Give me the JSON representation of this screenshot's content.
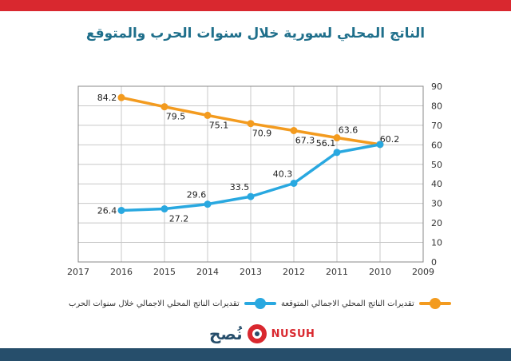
{
  "title": "الناتج المحلي لسورية خلال سنوات الحرب والمتوقع",
  "legend": {
    "actual": "تقديرات الناتج المحلي الاجمالي خلال سنوات الحرب",
    "expected": "تقديرات الناتج المحلي الاجمالي المتوقعة"
  },
  "logo": {
    "arabic": "نُصح",
    "english": "NUSUH"
  },
  "colors": {
    "actual": "#29a8e0",
    "expected": "#f39b1f",
    "accent": "#d9282f",
    "navy": "#264e6b"
  },
  "chart_data": {
    "type": "line",
    "x_ticks": [
      "2017",
      "2016",
      "2015",
      "2014",
      "2013",
      "2012",
      "2011",
      "2010",
      "2009"
    ],
    "y_ticks": [
      "0",
      "10",
      "20",
      "30",
      "40",
      "50",
      "60",
      "70",
      "80",
      "90"
    ],
    "ylim": [
      0,
      90
    ],
    "xlim": [
      2017,
      2009
    ],
    "grid": true,
    "series": [
      {
        "key": "expected",
        "name": "تقديرات الناتج المحلي الاجمالي المتوقعة",
        "x": [
          2016,
          2015,
          2014,
          2013,
          2012,
          2011,
          2010
        ],
        "y": [
          84.2,
          79.5,
          75.1,
          70.9,
          67.3,
          63.6,
          60.2
        ],
        "labels": [
          "84.2",
          "79.5",
          "75.1",
          "70.9",
          "67.3",
          "63.6",
          "60.2"
        ]
      },
      {
        "key": "actual",
        "name": "تقديرات الناتج المحلي الاجمالي خلال سنوات الحرب",
        "x": [
          2016,
          2015,
          2014,
          2013,
          2012,
          2011,
          2010
        ],
        "y": [
          26.4,
          27.2,
          29.6,
          33.5,
          40.3,
          56.1,
          60.2
        ],
        "labels": [
          "26.4",
          "27.2",
          "29.6",
          "33.5",
          "40.3",
          "56.1",
          ""
        ]
      }
    ]
  }
}
